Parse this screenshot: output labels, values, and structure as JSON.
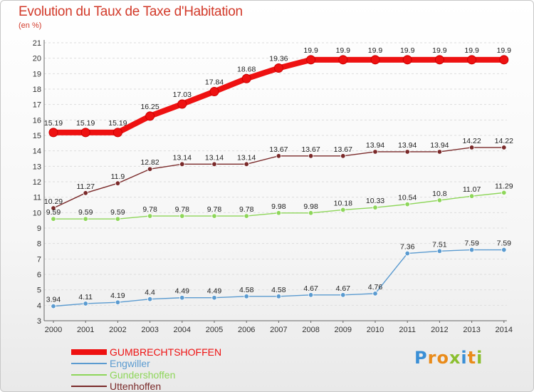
{
  "title": "Evolution du Taux de Taxe d'Habitation",
  "subtitle": "(en %)",
  "logo": {
    "text": "Proxiti",
    "colors": [
      "#3a8fd6",
      "#e98b1a",
      "#8bbf2f"
    ]
  },
  "chart_data": {
    "type": "line",
    "title": "Evolution du Taux de Taxe d'Habitation",
    "ylabel": "(en %)",
    "xlabel": "",
    "ylim": [
      3,
      21
    ],
    "yticks": [
      3,
      4,
      5,
      6,
      7,
      8,
      9,
      10,
      11,
      12,
      13,
      14,
      15,
      16,
      17,
      18,
      19,
      20,
      21
    ],
    "grid": true,
    "legend_position": "bottom-left",
    "x": [
      "2000",
      "2001",
      "2002",
      "2003",
      "2004",
      "2005",
      "2006",
      "2007",
      "2008",
      "2009",
      "2010",
      "2011",
      "2012",
      "2013",
      "2014"
    ],
    "series": [
      {
        "name": "GUMBRECHTSHOFFEN",
        "color": "#ee1111",
        "values": [
          15.19,
          15.19,
          15.19,
          16.25,
          17.03,
          17.84,
          18.68,
          19.36,
          19.9,
          19.9,
          19.9,
          19.9,
          19.9,
          19.9,
          19.9
        ],
        "labels": [
          "15.19",
          "15.19",
          "15.19",
          "16.25",
          "17.03",
          "17.84",
          "18.68",
          "19.36",
          "19.9",
          "19.9",
          "19.9",
          "19.9",
          "19.9",
          "19.9",
          "19.9"
        ]
      },
      {
        "name": "Engwiller",
        "color": "#5b9bd0",
        "values": [
          3.94,
          4.11,
          4.19,
          4.4,
          4.49,
          4.49,
          4.58,
          4.58,
          4.67,
          4.67,
          4.76,
          7.36,
          7.51,
          7.59,
          7.59
        ],
        "labels": [
          "3.94",
          "4.11",
          "4.19",
          "4.4",
          "4.49",
          "4.49",
          "4.58",
          "4.58",
          "4.67",
          "4.67",
          "4.76",
          "7.36",
          "7.51",
          "7.59",
          "7.59"
        ]
      },
      {
        "name": "Gundershoffen",
        "color": "#8ed65a",
        "values": [
          9.59,
          9.59,
          9.59,
          9.78,
          9.78,
          9.78,
          9.78,
          9.98,
          9.98,
          10.18,
          10.33,
          10.54,
          10.8,
          11.07,
          11.29
        ],
        "labels": [
          "9.59",
          "9.59",
          "9.59",
          "9.78",
          "9.78",
          "9.78",
          "9.78",
          "9.98",
          "9.98",
          "10.18",
          "10.33",
          "10.54",
          "10.8",
          "11.07",
          "11.29"
        ]
      },
      {
        "name": "Uttenhoffen",
        "color": "#7a2a2a",
        "values": [
          10.29,
          11.27,
          11.9,
          12.82,
          13.14,
          13.14,
          13.14,
          13.67,
          13.67,
          13.67,
          13.94,
          13.94,
          13.94,
          14.22,
          14.22
        ],
        "labels": [
          "10.29",
          "11.27",
          "11.9",
          "12.82",
          "13.14",
          "13.14",
          "13.14",
          "13.67",
          "13.67",
          "13.67",
          "13.94",
          "13.94",
          "13.94",
          "14.22",
          "14.22"
        ]
      }
    ]
  }
}
